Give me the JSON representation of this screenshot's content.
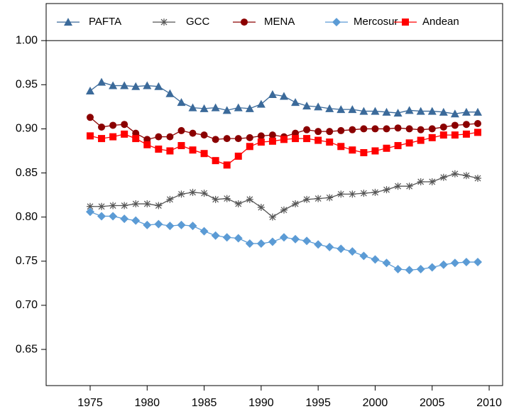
{
  "chart_data": {
    "type": "line",
    "x": [
      1975,
      1976,
      1977,
      1978,
      1979,
      1980,
      1981,
      1982,
      1983,
      1984,
      1985,
      1986,
      1987,
      1988,
      1989,
      1990,
      1991,
      1992,
      1993,
      1994,
      1995,
      1996,
      1997,
      1998,
      1999,
      2000,
      2001,
      2002,
      2003,
      2004,
      2005,
      2006,
      2007,
      2008,
      2009
    ],
    "series": [
      {
        "name": "PAFTA",
        "color": "#3b6a9a",
        "marker": "triangle",
        "values": [
          0.943,
          0.953,
          0.949,
          0.949,
          0.948,
          0.949,
          0.948,
          0.94,
          0.93,
          0.924,
          0.923,
          0.924,
          0.921,
          0.924,
          0.923,
          0.928,
          0.939,
          0.937,
          0.93,
          0.926,
          0.925,
          0.923,
          0.922,
          0.922,
          0.92,
          0.92,
          0.919,
          0.918,
          0.921,
          0.92,
          0.92,
          0.919,
          0.917,
          0.919,
          0.919
        ]
      },
      {
        "name": "GCC",
        "color": "#555555",
        "marker": "asterisk",
        "values": [
          0.812,
          0.812,
          0.813,
          0.813,
          0.815,
          0.815,
          0.813,
          0.82,
          0.826,
          0.828,
          0.827,
          0.82,
          0.821,
          0.815,
          0.82,
          0.811,
          0.8,
          0.808,
          0.815,
          0.82,
          0.821,
          0.822,
          0.826,
          0.826,
          0.827,
          0.828,
          0.831,
          0.835,
          0.835,
          0.84,
          0.84,
          0.845,
          0.849,
          0.847,
          0.844
        ]
      },
      {
        "name": "MENA",
        "color": "#8b0000",
        "marker": "circle",
        "values": [
          0.913,
          0.902,
          0.904,
          0.905,
          0.895,
          0.888,
          0.891,
          0.891,
          0.898,
          0.895,
          0.893,
          0.888,
          0.889,
          0.889,
          0.89,
          0.892,
          0.893,
          0.891,
          0.895,
          0.899,
          0.897,
          0.897,
          0.898,
          0.899,
          0.9,
          0.9,
          0.9,
          0.901,
          0.9,
          0.899,
          0.9,
          0.902,
          0.904,
          0.905,
          0.906
        ]
      },
      {
        "name": "Mercosur",
        "color": "#5b9bd5",
        "marker": "diamond",
        "values": [
          0.806,
          0.801,
          0.801,
          0.798,
          0.796,
          0.791,
          0.792,
          0.79,
          0.791,
          0.79,
          0.784,
          0.779,
          0.777,
          0.776,
          0.77,
          0.77,
          0.772,
          0.777,
          0.775,
          0.773,
          0.769,
          0.766,
          0.764,
          0.761,
          0.756,
          0.752,
          0.748,
          0.741,
          0.74,
          0.741,
          0.743,
          0.746,
          0.748,
          0.749,
          0.749
        ]
      },
      {
        "name": "Andean",
        "color": "#ff0000",
        "marker": "square",
        "values": [
          0.892,
          0.889,
          0.891,
          0.894,
          0.889,
          0.882,
          0.877,
          0.875,
          0.881,
          0.876,
          0.872,
          0.864,
          0.859,
          0.869,
          0.88,
          0.885,
          0.886,
          0.888,
          0.889,
          0.889,
          0.887,
          0.885,
          0.88,
          0.876,
          0.873,
          0.875,
          0.878,
          0.881,
          0.884,
          0.887,
          0.89,
          0.893,
          0.893,
          0.894,
          0.896
        ]
      }
    ],
    "xlim": [
      1971.14,
      2011.18
    ],
    "xticks": [
      1975,
      1980,
      1985,
      1990,
      1995,
      2000,
      2005,
      2010
    ],
    "ylim": [
      0.609,
      1.042
    ],
    "yticks": [
      {
        "value": 0.65,
        "label": "0.65"
      },
      {
        "value": 0.7,
        "label": "0.70"
      },
      {
        "value": 0.75,
        "label": "0.75"
      },
      {
        "value": 0.8,
        "label": "0.80"
      },
      {
        "value": 0.85,
        "label": "0.85"
      },
      {
        "value": 0.9,
        "label": "0.90"
      },
      {
        "value": 0.95,
        "label": "0.95"
      },
      {
        "value": 1.0,
        "label": "1.00"
      }
    ]
  }
}
